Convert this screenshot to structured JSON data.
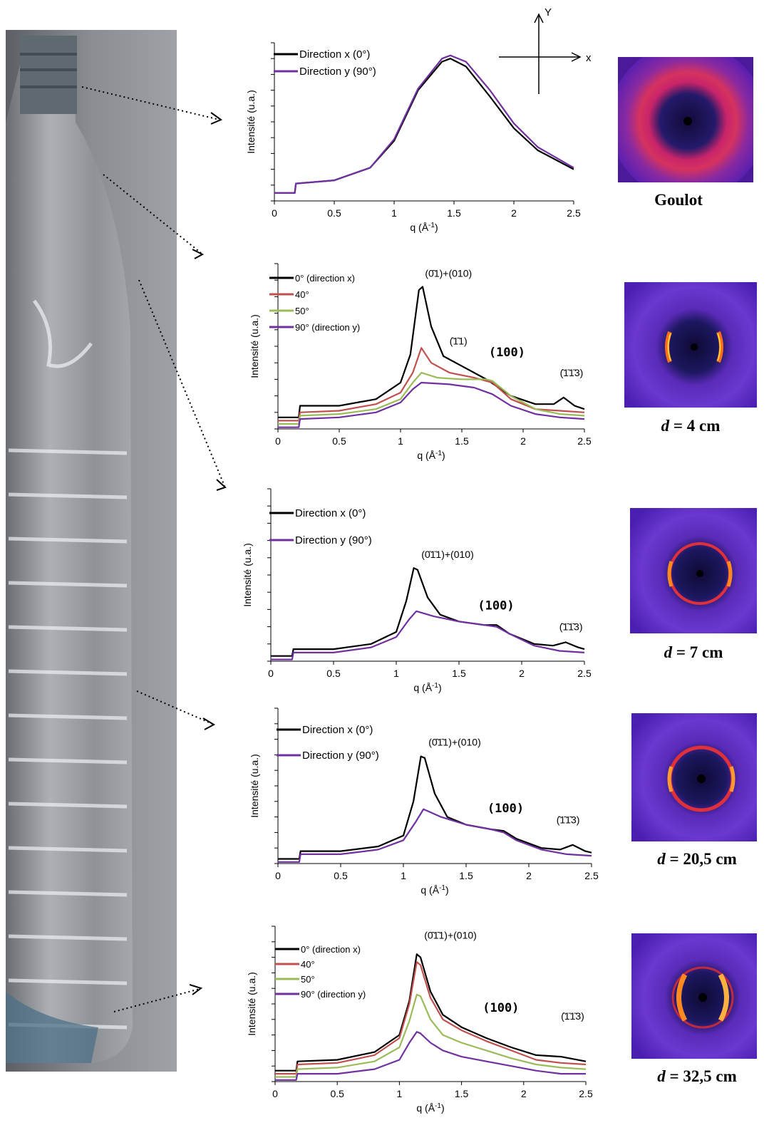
{
  "orientation_axes": {
    "x_label": "x",
    "y_label": "Y"
  },
  "captions": [
    {
      "var": "",
      "text": "Goulot"
    },
    {
      "var": "d",
      "text": " = 4 cm"
    },
    {
      "var": "d",
      "text": " = 7 cm"
    },
    {
      "var": "d",
      "text": " = 20,5 cm"
    },
    {
      "var": "d",
      "text": " = 32,5 cm"
    }
  ],
  "colors": {
    "black": "#000000",
    "red": "#c0504d",
    "green": "#9bbb59",
    "purple": "#7030a0"
  },
  "chart_data": [
    {
      "type": "line",
      "xlabel_html": "q (Å<sup>-1</sup>)",
      "xlabel": "q (Å-1)",
      "ylabel": "Intensité (u.a.)",
      "xlim": [
        0,
        2.5
      ],
      "xticks": [
        "0",
        "0.5",
        "1",
        "1.5",
        "2",
        "2.5"
      ],
      "legend_placement": "top-left",
      "series": [
        {
          "name": "Direction x (0°)",
          "color": "#000000",
          "x": [
            0,
            0.17,
            0.18,
            0.5,
            0.8,
            1.0,
            1.2,
            1.4,
            1.47,
            1.6,
            1.8,
            2.0,
            2.2,
            2.5
          ],
          "y": [
            0.05,
            0.05,
            0.11,
            0.13,
            0.21,
            0.38,
            0.7,
            0.88,
            0.9,
            0.85,
            0.66,
            0.46,
            0.32,
            0.2
          ]
        },
        {
          "name": "Direction y (90°)",
          "color": "#7030a0",
          "x": [
            0,
            0.17,
            0.18,
            0.5,
            0.8,
            1.0,
            1.2,
            1.4,
            1.47,
            1.6,
            1.8,
            2.0,
            2.2,
            2.5
          ],
          "y": [
            0.05,
            0.05,
            0.11,
            0.13,
            0.21,
            0.39,
            0.71,
            0.9,
            0.92,
            0.88,
            0.7,
            0.49,
            0.34,
            0.21
          ]
        }
      ],
      "annotations": []
    },
    {
      "type": "line",
      "xlabel": "q (Å-1)",
      "ylabel": "Intensité (u.a.)",
      "xlim": [
        0,
        2.5
      ],
      "xticks": [
        "0",
        "0.5",
        "1",
        "1.5",
        "2",
        "2.5"
      ],
      "legend_placement": "top-left",
      "series": [
        {
          "name": "0° (direction x)",
          "color": "#000000",
          "x": [
            0,
            0.17,
            0.18,
            0.5,
            0.8,
            1.0,
            1.08,
            1.15,
            1.18,
            1.25,
            1.35,
            1.5,
            1.7,
            1.9,
            2.1,
            2.25,
            2.33,
            2.42,
            2.5
          ],
          "y": [
            0.07,
            0.07,
            0.14,
            0.14,
            0.18,
            0.28,
            0.45,
            0.84,
            0.86,
            0.62,
            0.44,
            0.38,
            0.3,
            0.2,
            0.15,
            0.15,
            0.19,
            0.14,
            0.12
          ]
        },
        {
          "name": "40°",
          "color": "#c0504d",
          "x": [
            0,
            0.17,
            0.18,
            0.5,
            0.8,
            1.0,
            1.1,
            1.17,
            1.25,
            1.4,
            1.6,
            1.75,
            1.9,
            2.1,
            2.3,
            2.5
          ],
          "y": [
            0.05,
            0.05,
            0.1,
            0.11,
            0.15,
            0.22,
            0.34,
            0.49,
            0.4,
            0.34,
            0.31,
            0.28,
            0.18,
            0.12,
            0.11,
            0.1
          ]
        },
        {
          "name": "50°",
          "color": "#9bbb59",
          "x": [
            0,
            0.17,
            0.18,
            0.5,
            0.8,
            1.0,
            1.1,
            1.17,
            1.3,
            1.5,
            1.7,
            1.75,
            1.9,
            2.1,
            2.3,
            2.5
          ],
          "y": [
            0.03,
            0.03,
            0.08,
            0.09,
            0.12,
            0.18,
            0.28,
            0.34,
            0.31,
            0.3,
            0.3,
            0.29,
            0.2,
            0.12,
            0.09,
            0.08
          ]
        },
        {
          "name": "90° (direction y)",
          "color": "#7030a0",
          "x": [
            0,
            0.17,
            0.18,
            0.5,
            0.8,
            1.0,
            1.1,
            1.17,
            1.4,
            1.6,
            1.75,
            1.9,
            2.1,
            2.3,
            2.5
          ],
          "y": [
            0.01,
            0.01,
            0.06,
            0.07,
            0.1,
            0.16,
            0.24,
            0.28,
            0.27,
            0.25,
            0.21,
            0.14,
            0.09,
            0.07,
            0.06
          ]
        }
      ],
      "annotations": [
        {
          "text": "(0̄1)+(010)",
          "x": 1.2,
          "y": 0.92,
          "big": false
        },
        {
          "text": "(̄1̄1)",
          "x": 1.4,
          "y": 0.51,
          "big": false
        },
        {
          "text": "(100)",
          "x": 1.72,
          "y": 0.44,
          "big": true
        },
        {
          "text": "(̄1̄1̄3)",
          "x": 2.3,
          "y": 0.32,
          "big": false
        }
      ]
    },
    {
      "type": "line",
      "xlabel": "q (Å-1)",
      "ylabel": "Intensité (u.a.)",
      "xlim": [
        0,
        2.5
      ],
      "xticks": [
        "0",
        "0.5",
        "1",
        "1.5",
        "2",
        "2.5"
      ],
      "legend_placement": "top-left",
      "series": [
        {
          "name": "Direction x (0°)",
          "color": "#000000",
          "x": [
            0,
            0.17,
            0.18,
            0.5,
            0.8,
            1.0,
            1.08,
            1.14,
            1.17,
            1.25,
            1.35,
            1.5,
            1.7,
            1.8,
            1.9,
            2.1,
            2.25,
            2.35,
            2.45,
            2.5
          ],
          "y": [
            0.03,
            0.03,
            0.07,
            0.07,
            0.1,
            0.17,
            0.35,
            0.54,
            0.53,
            0.37,
            0.27,
            0.23,
            0.21,
            0.21,
            0.16,
            0.1,
            0.09,
            0.11,
            0.08,
            0.07
          ]
        },
        {
          "name": "Direction y (90°)",
          "color": "#7030a0",
          "x": [
            0,
            0.17,
            0.18,
            0.5,
            0.8,
            1.0,
            1.1,
            1.16,
            1.3,
            1.5,
            1.7,
            1.8,
            1.9,
            2.1,
            2.3,
            2.5
          ],
          "y": [
            0.01,
            0.01,
            0.05,
            0.05,
            0.08,
            0.14,
            0.24,
            0.29,
            0.26,
            0.23,
            0.21,
            0.2,
            0.16,
            0.09,
            0.06,
            0.05
          ]
        }
      ],
      "annotations": [
        {
          "text": "(0̄1̄1)+(010)",
          "x": 1.2,
          "y": 0.6,
          "big": false
        },
        {
          "text": "(100)",
          "x": 1.65,
          "y": 0.3,
          "big": true
        },
        {
          "text": "(̄1̄1̄3)",
          "x": 2.3,
          "y": 0.18,
          "big": false
        }
      ]
    },
    {
      "type": "line",
      "xlabel": "q (Å-1)",
      "ylabel": "Intensité (u.a.)",
      "xlim": [
        0,
        2.5
      ],
      "xticks": [
        "0",
        "0.5",
        "1",
        "1.5",
        "2",
        "2.5"
      ],
      "legend_placement": "top-left",
      "series": [
        {
          "name": "Direction x (0°)",
          "color": "#000000",
          "x": [
            0,
            0.17,
            0.18,
            0.5,
            0.8,
            1.0,
            1.08,
            1.14,
            1.17,
            1.25,
            1.35,
            1.5,
            1.7,
            1.8,
            1.9,
            2.1,
            2.25,
            2.35,
            2.45,
            2.5
          ],
          "y": [
            0.03,
            0.03,
            0.08,
            0.08,
            0.11,
            0.18,
            0.4,
            0.69,
            0.68,
            0.45,
            0.3,
            0.25,
            0.22,
            0.21,
            0.16,
            0.1,
            0.09,
            0.12,
            0.08,
            0.07
          ]
        },
        {
          "name": "Direction y (90°)",
          "color": "#7030a0",
          "x": [
            0,
            0.17,
            0.18,
            0.5,
            0.8,
            1.0,
            1.1,
            1.16,
            1.3,
            1.5,
            1.7,
            1.8,
            1.9,
            2.1,
            2.3,
            2.5
          ],
          "y": [
            0.01,
            0.01,
            0.06,
            0.06,
            0.09,
            0.15,
            0.27,
            0.35,
            0.3,
            0.25,
            0.22,
            0.2,
            0.15,
            0.09,
            0.06,
            0.05
          ]
        }
      ],
      "annotations": [
        {
          "text": "(0̄1̄1)+(010)",
          "x": 1.2,
          "y": 0.76,
          "big": false
        },
        {
          "text": "(100)",
          "x": 1.67,
          "y": 0.33,
          "big": true
        },
        {
          "text": "(̄1̄1̄3)",
          "x": 2.22,
          "y": 0.26,
          "big": false
        }
      ]
    },
    {
      "type": "line",
      "xlabel": "q (Å-1)",
      "ylabel": "Intensité (u.a.)",
      "xlim": [
        0,
        2.5
      ],
      "xticks": [
        "0",
        "0.5",
        "1",
        "1.5",
        "2",
        "2.5"
      ],
      "legend_placement": "top-left",
      "series": [
        {
          "name": "0° (direction x)",
          "color": "#000000",
          "x": [
            0,
            0.17,
            0.18,
            0.5,
            0.8,
            1.0,
            1.08,
            1.14,
            1.17,
            1.25,
            1.35,
            1.5,
            1.7,
            1.9,
            2.1,
            2.3,
            2.5
          ],
          "y": [
            0.07,
            0.07,
            0.13,
            0.14,
            0.19,
            0.3,
            0.52,
            0.82,
            0.8,
            0.58,
            0.43,
            0.35,
            0.28,
            0.22,
            0.17,
            0.16,
            0.13
          ]
        },
        {
          "name": "40°",
          "color": "#c0504d",
          "x": [
            0,
            0.17,
            0.18,
            0.5,
            0.8,
            1.0,
            1.08,
            1.14,
            1.17,
            1.25,
            1.35,
            1.5,
            1.7,
            1.9,
            2.1,
            2.3,
            2.5
          ],
          "y": [
            0.05,
            0.05,
            0.11,
            0.12,
            0.17,
            0.28,
            0.5,
            0.77,
            0.75,
            0.54,
            0.4,
            0.33,
            0.26,
            0.2,
            0.14,
            0.12,
            0.11
          ]
        },
        {
          "name": "50°",
          "color": "#9bbb59",
          "x": [
            0,
            0.17,
            0.18,
            0.5,
            0.8,
            1.0,
            1.08,
            1.14,
            1.17,
            1.25,
            1.35,
            1.5,
            1.7,
            1.9,
            2.1,
            2.3,
            2.5
          ],
          "y": [
            0.03,
            0.03,
            0.08,
            0.09,
            0.13,
            0.22,
            0.39,
            0.56,
            0.55,
            0.4,
            0.3,
            0.25,
            0.2,
            0.15,
            0.11,
            0.09,
            0.08
          ]
        },
        {
          "name": "90° (direction y)",
          "color": "#7030a0",
          "x": [
            0,
            0.17,
            0.18,
            0.5,
            0.8,
            1.0,
            1.08,
            1.14,
            1.17,
            1.25,
            1.35,
            1.5,
            1.7,
            1.9,
            2.1,
            2.3,
            2.5
          ],
          "y": [
            0.01,
            0.01,
            0.05,
            0.05,
            0.08,
            0.14,
            0.25,
            0.32,
            0.31,
            0.25,
            0.2,
            0.16,
            0.13,
            0.1,
            0.07,
            0.05,
            0.05
          ]
        }
      ],
      "annotations": [
        {
          "text": "(0̄1̄1)+(010)",
          "x": 1.2,
          "y": 0.92,
          "big": false
        },
        {
          "text": "(100)",
          "x": 1.67,
          "y": 0.45,
          "big": true
        },
        {
          "text": "(̄1̄1̄3)",
          "x": 2.3,
          "y": 0.4,
          "big": false
        }
      ]
    }
  ]
}
